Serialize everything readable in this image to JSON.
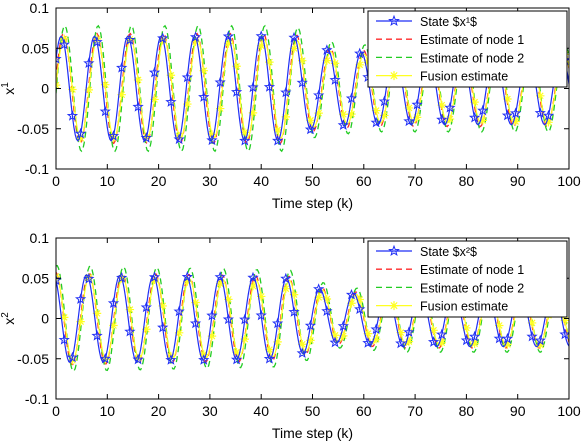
{
  "chart_data": [
    {
      "type": "line",
      "xlabel": "Time step (k)",
      "ylabel": "x",
      "ylabel_sup": "1",
      "xlim": [
        0,
        100
      ],
      "ylim": [
        -0.1,
        0.1
      ],
      "xticks": [
        "0",
        "10",
        "20",
        "30",
        "40",
        "50",
        "60",
        "70",
        "80",
        "90",
        "100"
      ],
      "yticks": [
        "0.1",
        "0.05",
        "0",
        "-0.05",
        "-0.1"
      ],
      "grid": false,
      "legend_position": "top-right",
      "signal": {
        "amp_segments": [
          [
            0,
            0.065
          ],
          [
            46,
            0.065
          ],
          [
            50,
            0.05
          ],
          [
            60,
            0.045
          ],
          [
            100,
            0.045
          ]
        ],
        "period": 6.5,
        "phase": 0.6
      },
      "series": [
        {
          "name": "State $x¹$",
          "color": "#1f2ef5",
          "style": "solid",
          "marker": "star",
          "lag": 0,
          "gain": 1.0
        },
        {
          "name": "Estimate of node 1",
          "color": "#ff2a2a",
          "style": "dashed",
          "marker": "none",
          "lag": 0.45,
          "gain": 1.05
        },
        {
          "name": "Estimate of node 2",
          "color": "#22cc22",
          "style": "dashed",
          "marker": "none",
          "lag": 0.7,
          "gain": 1.2
        },
        {
          "name": "Fusion estimate",
          "color": "#ffff22",
          "style": "solid",
          "marker": "asterisk",
          "lag": 0.55,
          "gain": 0.95
        }
      ]
    },
    {
      "type": "line",
      "xlabel": "Time step (k)",
      "ylabel": "x",
      "ylabel_sup": "2",
      "xlim": [
        0,
        100
      ],
      "ylim": [
        -0.1,
        0.1
      ],
      "xticks": [
        "0",
        "10",
        "20",
        "30",
        "40",
        "50",
        "60",
        "70",
        "80",
        "90",
        "100"
      ],
      "yticks": [
        "0.1",
        "0.05",
        "0",
        "-0.05",
        "-0.1"
      ],
      "grid": false,
      "legend_position": "top-right",
      "signal": {
        "amp_segments": [
          [
            0,
            0.055
          ],
          [
            45,
            0.05
          ],
          [
            55,
            0.03
          ],
          [
            65,
            0.035
          ],
          [
            100,
            0.035
          ]
        ],
        "period": 6.5,
        "phase": 2.1
      },
      "series": [
        {
          "name": "State $x²$",
          "color": "#1f2ef5",
          "style": "solid",
          "marker": "star",
          "lag": 0,
          "gain": 1.0
        },
        {
          "name": "Estimate of node 1",
          "color": "#ff2a2a",
          "style": "dashed",
          "marker": "none",
          "lag": 0.45,
          "gain": 1.05
        },
        {
          "name": "Estimate of node 2",
          "color": "#22cc22",
          "style": "dashed",
          "marker": "none",
          "lag": 0.7,
          "gain": 1.2
        },
        {
          "name": "Fusion estimate",
          "color": "#ffff22",
          "style": "solid",
          "marker": "asterisk",
          "lag": 0.55,
          "gain": 0.95
        }
      ]
    }
  ]
}
